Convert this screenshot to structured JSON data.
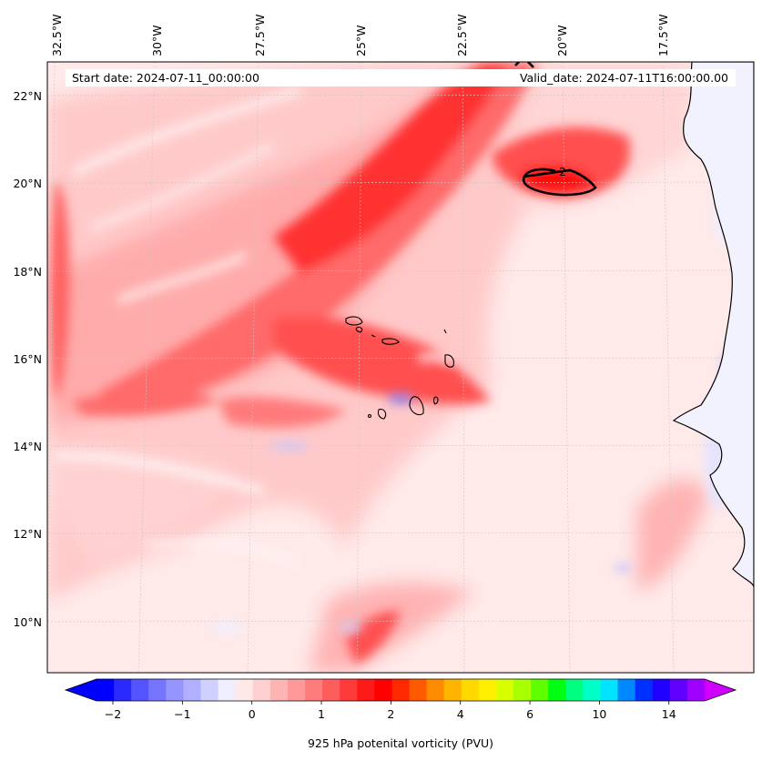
{
  "header": {
    "start_date": "Start date: 2024-07-11_00:00:00",
    "valid_date": "Valid_date: 2024-07-11T16:00:00.00"
  },
  "map": {
    "lon_labels": [
      "32.5°W",
      "30°W",
      "27.5°W",
      "25°W",
      "22.5°W",
      "20°W",
      "17.5°W"
    ],
    "lat_labels": [
      "22°N",
      "20°N",
      "18°N",
      "16°N",
      "14°N",
      "12°N",
      "10°N"
    ],
    "contour_label": "2",
    "features": [
      "coastline-africa",
      "cape-verde-islands",
      "pv-contour-2"
    ]
  },
  "colorbar": {
    "ticks": [
      "−2",
      "−1",
      "0",
      "1",
      "2",
      "4",
      "6",
      "10",
      "14"
    ],
    "label": "925 hPa potenital vorticity (PVU)",
    "colors": [
      "#0000ff",
      "#2a2aff",
      "#5555ff",
      "#7575ff",
      "#9595ff",
      "#b0b0ff",
      "#d0d0ff",
      "#eeeeff",
      "#ffe8e8",
      "#ffd0d0",
      "#ffb4b4",
      "#ff9898",
      "#ff7c7c",
      "#ff5c5c",
      "#ff3a3a",
      "#ff1a1a",
      "#ff0000",
      "#ff2800",
      "#ff5a00",
      "#ff8c00",
      "#ffb400",
      "#ffd800",
      "#fff000",
      "#d8ff00",
      "#a8ff00",
      "#60ff00",
      "#00ff10",
      "#00ff80",
      "#00ffc8",
      "#00e4ff",
      "#0088ff",
      "#0030ff",
      "#2000ff",
      "#6000ff",
      "#a000ff"
    ],
    "under_color": "#0000ff",
    "over_color": "#d000ff"
  }
}
